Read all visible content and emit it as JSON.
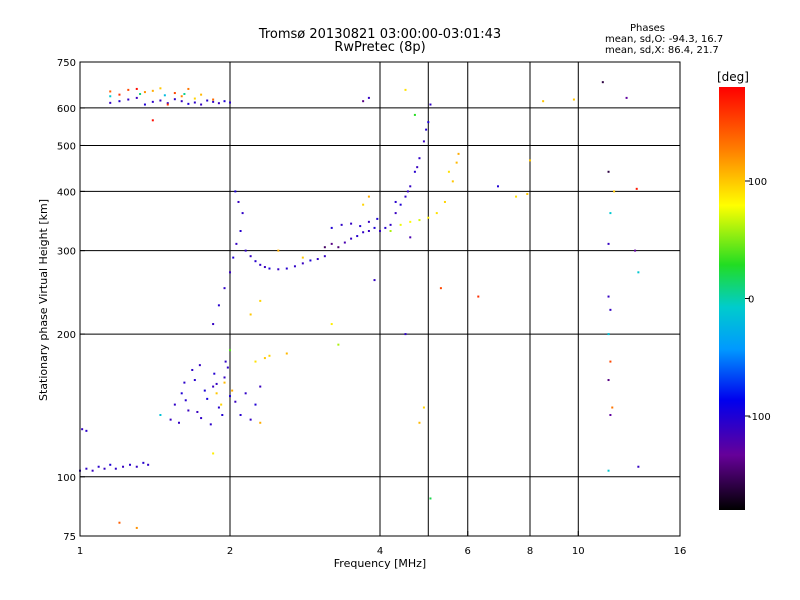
{
  "header": {
    "title_line1": "Tromsø 20130821 03:00:00-03:01:43",
    "title_line2": "RwPretec (8p)",
    "stats_title": "Phases",
    "stats_o": "mean, sd,O: -94.3, 16.7",
    "stats_x": "mean, sd,X:  86.4, 21.7"
  },
  "colorbar": {
    "unit": "[deg]",
    "min": -180,
    "max": 180,
    "ticks": [
      {
        "value": 100,
        "label": "100"
      },
      {
        "value": 0,
        "label": "0"
      },
      {
        "value": -100,
        "label": "-100"
      }
    ]
  },
  "chart_data": {
    "type": "scatter",
    "xlabel": "Frequency [MHz]",
    "ylabel": "Stationary phase Virtual Height [km]",
    "xscale": "log",
    "yscale": "log",
    "xlim": [
      1,
      16
    ],
    "ylim": [
      75,
      750
    ],
    "xticks": [
      {
        "value": 1,
        "label": "1"
      },
      {
        "value": 2,
        "label": "2"
      },
      {
        "value": 4,
        "label": "4"
      },
      {
        "value": 6,
        "label": "6"
      },
      {
        "value": 8,
        "label": "8"
      },
      {
        "value": 10,
        "label": "10"
      },
      {
        "value": 16,
        "label": "16"
      }
    ],
    "yticks": [
      {
        "value": 75,
        "label": "75"
      },
      {
        "value": 100,
        "label": "100"
      },
      {
        "value": 200,
        "label": "200"
      },
      {
        "value": 300,
        "label": "300"
      },
      {
        "value": 400,
        "label": "400"
      },
      {
        "value": 500,
        "label": "500"
      },
      {
        "value": 600,
        "label": "600"
      },
      {
        "value": 750,
        "label": "750"
      }
    ],
    "xgrid": [
      2,
      4,
      5,
      6,
      8,
      10
    ],
    "ygrid": [
      100,
      200,
      300,
      400,
      500,
      600
    ],
    "series": [
      {
        "name": "",
        "points": [
          [
            1.0,
            103,
            -110
          ],
          [
            1.03,
            104,
            -108
          ],
          [
            1.06,
            103,
            -112
          ],
          [
            1.09,
            105,
            -105
          ],
          [
            1.12,
            104,
            -110
          ],
          [
            1.15,
            106,
            -100
          ],
          [
            1.18,
            104,
            -108
          ],
          [
            1.22,
            105,
            -112
          ],
          [
            1.26,
            106,
            -106
          ],
          [
            1.3,
            105,
            -110
          ],
          [
            1.34,
            107,
            -104
          ],
          [
            1.37,
            106,
            -108
          ],
          [
            1.01,
            126,
            -110
          ],
          [
            1.03,
            125,
            -106
          ],
          [
            1.55,
            142,
            -108
          ],
          [
            1.6,
            150,
            -100
          ],
          [
            1.65,
            138,
            -112
          ],
          [
            1.7,
            160,
            -104
          ],
          [
            1.75,
            133,
            -108
          ],
          [
            1.8,
            146,
            -96
          ],
          [
            1.85,
            155,
            -112
          ],
          [
            1.9,
            140,
            -104
          ],
          [
            1.95,
            162,
            -110
          ],
          [
            2.0,
            148,
            -100
          ],
          [
            1.58,
            130,
            -110
          ],
          [
            1.63,
            145,
            -104
          ],
          [
            1.68,
            168,
            -108
          ],
          [
            1.72,
            137,
            -112
          ],
          [
            1.78,
            152,
            -98
          ],
          [
            1.83,
            129,
            -106
          ],
          [
            1.88,
            157,
            -110
          ],
          [
            1.93,
            135,
            -102
          ],
          [
            1.98,
            170,
            -108
          ],
          [
            2.05,
            144,
            -112
          ],
          [
            2.1,
            135,
            -104
          ],
          [
            2.15,
            150,
            -108
          ],
          [
            2.2,
            132,
            -110
          ],
          [
            2.25,
            142,
            -100
          ],
          [
            2.3,
            155,
            -112
          ],
          [
            1.62,
            158,
            -106
          ],
          [
            1.74,
            172,
            -110
          ],
          [
            1.86,
            165,
            -102
          ],
          [
            1.96,
            175,
            -108
          ],
          [
            1.52,
            132,
            -112
          ],
          [
            1.88,
            150,
            100
          ],
          [
            1.92,
            142,
            95
          ],
          [
            1.95,
            158,
            105
          ],
          [
            2.02,
            152,
            110
          ],
          [
            2.25,
            175,
            90
          ],
          [
            2.35,
            178,
            100
          ],
          [
            2.4,
            180,
            95
          ],
          [
            2.3,
            130,
            110
          ],
          [
            1.85,
            112,
            85
          ],
          [
            2.0,
            185,
            40
          ],
          [
            1.45,
            135,
            -15
          ],
          [
            2.6,
            182,
            105
          ],
          [
            1.85,
            210,
            -110
          ],
          [
            1.9,
            230,
            -104
          ],
          [
            1.95,
            250,
            -108
          ],
          [
            2.0,
            270,
            -112
          ],
          [
            2.03,
            290,
            -100
          ],
          [
            2.06,
            310,
            -110
          ],
          [
            2.1,
            330,
            -104
          ],
          [
            2.12,
            360,
            -108
          ],
          [
            2.08,
            380,
            -112
          ],
          [
            2.05,
            400,
            -100
          ],
          [
            2.15,
            300,
            -108
          ],
          [
            2.2,
            292,
            -110
          ],
          [
            2.25,
            285,
            -104
          ],
          [
            2.3,
            280,
            -108
          ],
          [
            2.35,
            277,
            -112
          ],
          [
            2.4,
            275,
            -100
          ],
          [
            2.5,
            274,
            -110
          ],
          [
            2.6,
            275,
            -104
          ],
          [
            2.7,
            278,
            -108
          ],
          [
            2.8,
            282,
            -112
          ],
          [
            2.9,
            286,
            -100
          ],
          [
            3.0,
            288,
            -108
          ],
          [
            3.1,
            292,
            -110
          ],
          [
            3.1,
            305,
            -150
          ],
          [
            3.2,
            310,
            -140
          ],
          [
            3.3,
            305,
            -145
          ],
          [
            3.4,
            312,
            -120
          ],
          [
            3.5,
            318,
            -110
          ],
          [
            3.6,
            322,
            -104
          ],
          [
            3.7,
            328,
            -108
          ],
          [
            3.8,
            330,
            -112
          ],
          [
            3.9,
            335,
            -100
          ],
          [
            3.2,
            335,
            -100
          ],
          [
            3.35,
            340,
            -108
          ],
          [
            3.5,
            342,
            -110
          ],
          [
            3.65,
            338,
            -104
          ],
          [
            3.8,
            345,
            -112
          ],
          [
            3.95,
            350,
            -100
          ],
          [
            4.0,
            330,
            -110
          ],
          [
            4.1,
            335,
            -104
          ],
          [
            4.2,
            340,
            -108
          ],
          [
            4.3,
            360,
            -112
          ],
          [
            4.4,
            375,
            -100
          ],
          [
            4.5,
            390,
            -108
          ],
          [
            4.6,
            410,
            -110
          ],
          [
            4.7,
            440,
            -104
          ],
          [
            4.8,
            470,
            -108
          ],
          [
            4.9,
            510,
            -112
          ],
          [
            5.0,
            560,
            -100
          ],
          [
            5.05,
            610,
            -108
          ],
          [
            4.95,
            540,
            -104
          ],
          [
            4.75,
            450,
            -112
          ],
          [
            4.55,
            400,
            -110
          ],
          [
            4.4,
            340,
            75
          ],
          [
            4.6,
            345,
            80
          ],
          [
            4.8,
            348,
            70
          ],
          [
            5.0,
            352,
            85
          ],
          [
            5.2,
            360,
            90
          ],
          [
            5.4,
            380,
            95
          ],
          [
            5.6,
            420,
            100
          ],
          [
            5.7,
            460,
            105
          ],
          [
            5.75,
            480,
            110
          ],
          [
            5.5,
            440,
            90
          ],
          [
            3.9,
            260,
            -110
          ],
          [
            4.3,
            380,
            -104
          ],
          [
            4.5,
            200,
            -108
          ],
          [
            4.2,
            330,
            60
          ],
          [
            1.15,
            615,
            -110
          ],
          [
            1.2,
            620,
            -104
          ],
          [
            1.25,
            625,
            -108
          ],
          [
            1.3,
            630,
            -112
          ],
          [
            1.35,
            610,
            -100
          ],
          [
            1.4,
            618,
            -106
          ],
          [
            1.45,
            622,
            -110
          ],
          [
            1.5,
            614,
            -104
          ],
          [
            1.55,
            626,
            -108
          ],
          [
            1.6,
            620,
            -112
          ],
          [
            1.65,
            612,
            -100
          ],
          [
            1.7,
            616,
            -106
          ],
          [
            1.75,
            610,
            -110
          ],
          [
            1.8,
            622,
            -104
          ],
          [
            1.85,
            618,
            -108
          ],
          [
            1.9,
            614,
            -112
          ],
          [
            1.95,
            620,
            -100
          ],
          [
            2.0,
            616,
            -106
          ],
          [
            1.15,
            650,
            140
          ],
          [
            1.25,
            655,
            150
          ],
          [
            1.35,
            648,
            120
          ],
          [
            1.45,
            660,
            100
          ],
          [
            1.55,
            645,
            150
          ],
          [
            1.65,
            658,
            130
          ],
          [
            1.2,
            640,
            160
          ],
          [
            1.4,
            652,
            110
          ],
          [
            1.6,
            635,
            125
          ],
          [
            1.75,
            640,
            105
          ],
          [
            1.3,
            658,
            175
          ],
          [
            1.85,
            625,
            135
          ],
          [
            1.5,
            610,
            160
          ],
          [
            1.7,
            628,
            95
          ],
          [
            1.4,
            565,
            175
          ],
          [
            1.15,
            635,
            -10
          ],
          [
            1.32,
            642,
            10
          ],
          [
            1.48,
            638,
            -20
          ],
          [
            1.62,
            642,
            5
          ],
          [
            2.2,
            220,
            100
          ],
          [
            2.3,
            235,
            95
          ],
          [
            2.5,
            300,
            110
          ],
          [
            2.8,
            290,
            100
          ],
          [
            3.7,
            375,
            95
          ],
          [
            3.8,
            390,
            110
          ],
          [
            3.2,
            210,
            85
          ],
          [
            3.3,
            190,
            60
          ],
          [
            3.7,
            620,
            -140
          ],
          [
            3.8,
            630,
            -110
          ],
          [
            4.5,
            655,
            90
          ],
          [
            4.7,
            580,
            30
          ],
          [
            4.8,
            130,
            105
          ],
          [
            4.9,
            140,
            95
          ],
          [
            7.9,
            395,
            100
          ],
          [
            8.0,
            465,
            100
          ],
          [
            6.9,
            410,
            -100
          ],
          [
            7.5,
            390,
            90
          ],
          [
            8.5,
            620,
            100
          ],
          [
            9.8,
            625,
            100
          ],
          [
            11.2,
            680,
            -160
          ],
          [
            12.5,
            630,
            -130
          ],
          [
            11.5,
            440,
            -160
          ],
          [
            11.8,
            400,
            100
          ],
          [
            11.6,
            360,
            -10
          ],
          [
            11.5,
            310,
            -110
          ],
          [
            11.5,
            240,
            -110
          ],
          [
            11.6,
            225,
            -110
          ],
          [
            11.5,
            200,
            -15
          ],
          [
            11.6,
            175,
            150
          ],
          [
            11.5,
            160,
            -140
          ],
          [
            11.7,
            140,
            130
          ],
          [
            11.6,
            135,
            -130
          ],
          [
            11.5,
            103,
            -10
          ],
          [
            13.0,
            300,
            -130
          ],
          [
            13.2,
            270,
            -10
          ],
          [
            13.1,
            405,
            170
          ],
          [
            13.2,
            105,
            -110
          ],
          [
            4.6,
            320,
            -120
          ],
          [
            5.3,
            250,
            150
          ],
          [
            6.3,
            240,
            160
          ],
          [
            5.05,
            90,
            20
          ],
          [
            1.2,
            80,
            140
          ],
          [
            1.3,
            78,
            120
          ]
        ]
      }
    ]
  }
}
